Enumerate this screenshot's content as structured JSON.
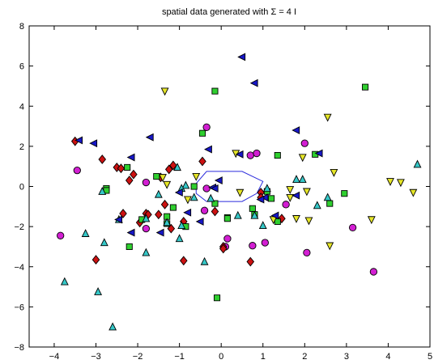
{
  "chart_data": {
    "type": "scatter",
    "title": "spatial data generated with Σ = 4 I",
    "xlabel": "",
    "ylabel": "",
    "xlim": [
      -4.6,
      5.0
    ],
    "ylim": [
      -8,
      8
    ],
    "xticks": [
      -4,
      -3,
      -2,
      -1,
      0,
      1,
      2,
      3,
      4,
      5
    ],
    "yticks": [
      -8,
      -6,
      -4,
      -2,
      0,
      2,
      4,
      6,
      8
    ],
    "grid": false,
    "legend": "none",
    "colors": {
      "magenta": "#d21fd2",
      "red": "#cc1111",
      "green": "#2fcf2f",
      "cyan": "#35c8c8",
      "yellow": "#e6e628",
      "blue": "#1717c7",
      "outline": "#000000",
      "polygon": "#2b2bdc"
    },
    "series": [
      {
        "marker": "circle",
        "color": "magenta",
        "points": [
          [
            -3.85,
            -2.45
          ],
          [
            -3.45,
            0.8
          ],
          [
            -1.8,
            -2.1
          ],
          [
            -1.8,
            0.2
          ],
          [
            -0.35,
            2.95
          ],
          [
            -0.35,
            -0.1
          ],
          [
            0.1,
            -3.0
          ],
          [
            0.15,
            -2.6
          ],
          [
            0.7,
            1.55
          ],
          [
            0.85,
            1.65
          ],
          [
            1.05,
            -2.8
          ],
          [
            1.55,
            -0.9
          ],
          [
            2.0,
            2.15
          ],
          [
            2.05,
            -3.3
          ],
          [
            3.15,
            -2.05
          ],
          [
            3.65,
            -4.25
          ],
          [
            0.75,
            -2.95
          ],
          [
            -0.4,
            -1.2
          ]
        ]
      },
      {
        "marker": "diamond",
        "color": "red",
        "points": [
          [
            -3.5,
            2.25
          ],
          [
            -3.0,
            -3.65
          ],
          [
            -2.85,
            1.35
          ],
          [
            -2.5,
            0.95
          ],
          [
            -2.4,
            0.9
          ],
          [
            -2.35,
            -1.35
          ],
          [
            -2.1,
            0.6
          ],
          [
            -1.95,
            -1.8
          ],
          [
            -1.8,
            -1.35
          ],
          [
            -1.5,
            -1.4
          ],
          [
            -1.45,
            0.45
          ],
          [
            -1.35,
            -0.9
          ],
          [
            -1.25,
            0.85
          ],
          [
            -1.15,
            1.05
          ],
          [
            -1.2,
            -2.1
          ],
          [
            -0.9,
            -3.7
          ],
          [
            -0.9,
            -1.75
          ],
          [
            -0.45,
            1.25
          ],
          [
            0.05,
            -3.0
          ],
          [
            0.05,
            -3.1
          ],
          [
            0.7,
            -3.75
          ],
          [
            0.95,
            -0.3
          ],
          [
            1.45,
            -1.6
          ],
          [
            -0.15,
            -1.25
          ],
          [
            0.95,
            -0.55
          ],
          [
            -1.75,
            -1.4
          ],
          [
            -2.2,
            0.3
          ]
        ]
      },
      {
        "marker": "square",
        "color": "green",
        "points": [
          [
            -2.75,
            -0.1
          ],
          [
            -2.25,
            0.95
          ],
          [
            -2.2,
            -3.0
          ],
          [
            -1.55,
            0.5
          ],
          [
            -1.3,
            -1.5
          ],
          [
            -0.85,
            -2.0
          ],
          [
            -0.65,
            0.0
          ],
          [
            -0.45,
            2.65
          ],
          [
            -0.15,
            -0.85
          ],
          [
            -0.15,
            4.75
          ],
          [
            -0.1,
            -5.55
          ],
          [
            0.15,
            -1.55
          ],
          [
            0.75,
            -1.1
          ],
          [
            1.1,
            -0.25
          ],
          [
            1.2,
            -0.6
          ],
          [
            1.35,
            1.55
          ],
          [
            2.25,
            1.6
          ],
          [
            2.6,
            -0.85
          ],
          [
            2.95,
            -0.35
          ],
          [
            3.45,
            4.95
          ],
          [
            1.35,
            -1.75
          ],
          [
            -1.15,
            -1.05
          ],
          [
            0.15,
            -1.6
          ],
          [
            0.8,
            -1.4
          ],
          [
            -2.75,
            -0.2
          ],
          [
            -1.9,
            -1.65
          ],
          [
            -1.3,
            -1.85
          ]
        ]
      },
      {
        "marker": "triangle-up",
        "color": "cyan",
        "points": [
          [
            -3.75,
            -4.75
          ],
          [
            -3.25,
            -2.35
          ],
          [
            -2.95,
            -5.25
          ],
          [
            -2.8,
            -2.8
          ],
          [
            -2.6,
            -7.0
          ],
          [
            -2.45,
            -1.65
          ],
          [
            -1.8,
            -3.3
          ],
          [
            -1.5,
            -0.4
          ],
          [
            -1.3,
            -1.8
          ],
          [
            -1.0,
            -2.6
          ],
          [
            -0.95,
            -1.95
          ],
          [
            -0.85,
            0.05
          ],
          [
            -0.65,
            -0.55
          ],
          [
            -0.4,
            -3.75
          ],
          [
            -0.25,
            -0.6
          ],
          [
            0.4,
            -1.45
          ],
          [
            0.8,
            -1.45
          ],
          [
            1.0,
            -1.95
          ],
          [
            1.8,
            0.35
          ],
          [
            1.95,
            0.35
          ],
          [
            2.3,
            -0.95
          ],
          [
            2.55,
            -0.55
          ],
          [
            4.7,
            1.1
          ],
          [
            -0.95,
            -0.1
          ],
          [
            1.1,
            -0.1
          ],
          [
            -1.8,
            -1.6
          ],
          [
            -2.85,
            -0.25
          ],
          [
            -1.05,
            0.95
          ]
        ]
      },
      {
        "marker": "triangle-down",
        "color": "yellow",
        "points": [
          [
            -1.35,
            4.75
          ],
          [
            -1.4,
            0.45
          ],
          [
            -1.3,
            0.1
          ],
          [
            -0.8,
            -0.65
          ],
          [
            0.35,
            1.65
          ],
          [
            0.45,
            -0.3
          ],
          [
            1.25,
            -1.65
          ],
          [
            1.65,
            -0.15
          ],
          [
            1.95,
            1.45
          ],
          [
            2.05,
            -0.25
          ],
          [
            2.1,
            -1.7
          ],
          [
            2.55,
            3.45
          ],
          [
            2.6,
            -2.95
          ],
          [
            2.7,
            0.7
          ],
          [
            3.6,
            -1.65
          ],
          [
            4.05,
            0.25
          ],
          [
            4.3,
            0.2
          ],
          [
            4.6,
            -0.3
          ],
          [
            -0.6,
            0.5
          ],
          [
            1.8,
            -1.6
          ],
          [
            1.65,
            -0.55
          ]
        ]
      },
      {
        "marker": "triangle-left",
        "color": "blue",
        "points": [
          [
            -3.4,
            2.3
          ],
          [
            -3.05,
            2.15
          ],
          [
            -2.45,
            -1.65
          ],
          [
            -2.15,
            1.45
          ],
          [
            -2.15,
            -2.3
          ],
          [
            -1.7,
            2.45
          ],
          [
            -1.45,
            -2.3
          ],
          [
            -1.0,
            -0.3
          ],
          [
            -0.8,
            -1.3
          ],
          [
            -0.5,
            -1.75
          ],
          [
            -0.3,
            1.85
          ],
          [
            -0.2,
            -0.05
          ],
          [
            0.45,
            1.6
          ],
          [
            0.5,
            6.45
          ],
          [
            0.8,
            5.15
          ],
          [
            1.05,
            -0.55
          ],
          [
            1.3,
            -1.45
          ],
          [
            1.8,
            2.8
          ],
          [
            1.8,
            -0.45
          ],
          [
            2.35,
            1.65
          ],
          [
            -0.15,
            -0.1
          ],
          [
            0.95,
            -0.65
          ],
          [
            -0.05,
            0.3
          ]
        ]
      }
    ],
    "polygon": [
      [
        -0.6,
        0.15
      ],
      [
        -0.35,
        0.75
      ],
      [
        0.5,
        0.75
      ],
      [
        1.0,
        0.25
      ],
      [
        0.85,
        -0.35
      ],
      [
        0.5,
        -0.75
      ],
      [
        -0.35,
        -0.75
      ],
      [
        -0.6,
        -0.35
      ]
    ]
  }
}
